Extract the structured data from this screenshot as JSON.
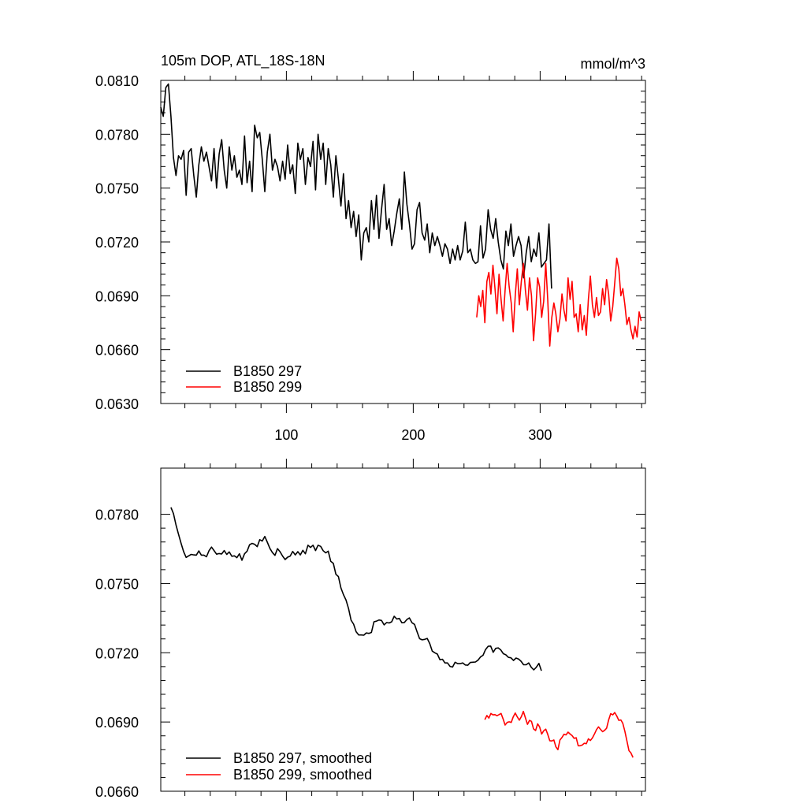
{
  "chart_data": [
    {
      "type": "line",
      "title": "105m DOP, ATL_18S-18N",
      "units": "mmol/m^3",
      "xlim": [
        1,
        383
      ],
      "ylim": [
        0.063,
        0.081
      ],
      "yticks": [
        "0.0630",
        "0.0660",
        "0.0690",
        "0.0720",
        "0.0750",
        "0.0780",
        "0.0810"
      ],
      "xticks": [
        "100",
        "200",
        "300"
      ],
      "legend_position": "bottom-left",
      "series": [
        {
          "name": "B1850 297",
          "color": "#000000",
          "x": [
            1,
            3,
            5,
            7,
            9,
            11,
            13,
            15,
            17,
            19,
            21,
            23,
            25,
            27,
            29,
            31,
            33,
            35,
            37,
            39,
            41,
            43,
            45,
            47,
            49,
            51,
            53,
            55,
            57,
            59,
            61,
            63,
            65,
            67,
            69,
            71,
            73,
            75,
            77,
            79,
            81,
            83,
            85,
            87,
            89,
            91,
            93,
            95,
            97,
            99,
            101,
            103,
            105,
            107,
            109,
            111,
            113,
            115,
            117,
            119,
            121,
            123,
            125,
            127,
            129,
            131,
            133,
            135,
            137,
            139,
            141,
            143,
            145,
            147,
            149,
            151,
            153,
            155,
            157,
            159,
            161,
            163,
            165,
            167,
            169,
            171,
            173,
            175,
            177,
            179,
            181,
            183,
            185,
            187,
            189,
            191,
            193,
            195,
            197,
            199,
            201,
            203,
            205,
            207,
            209,
            211,
            213,
            215,
            217,
            219,
            221,
            223,
            225,
            227,
            229,
            231,
            233,
            235,
            237,
            239,
            241,
            243,
            245,
            247,
            249,
            251,
            253,
            255,
            257,
            259,
            261,
            263,
            265,
            267,
            269,
            271,
            273,
            275,
            277,
            279,
            281,
            283,
            285,
            287,
            289,
            291,
            293,
            295,
            297,
            299,
            301,
            303,
            305,
            307,
            309
          ],
          "values": [
            0.0795,
            0.079,
            0.0806,
            0.0808,
            0.079,
            0.0767,
            0.0757,
            0.0768,
            0.0766,
            0.0771,
            0.0746,
            0.077,
            0.0772,
            0.0757,
            0.0745,
            0.0763,
            0.0773,
            0.0765,
            0.077,
            0.0762,
            0.0754,
            0.0772,
            0.075,
            0.0769,
            0.0777,
            0.076,
            0.075,
            0.0773,
            0.076,
            0.0768,
            0.0756,
            0.076,
            0.0752,
            0.0779,
            0.0753,
            0.0765,
            0.0748,
            0.0785,
            0.0778,
            0.0781,
            0.0766,
            0.0748,
            0.077,
            0.078,
            0.076,
            0.0766,
            0.0762,
            0.0754,
            0.0765,
            0.0755,
            0.0774,
            0.0758,
            0.0763,
            0.0747,
            0.0775,
            0.0766,
            0.0772,
            0.0752,
            0.0767,
            0.0762,
            0.0776,
            0.0749,
            0.078,
            0.0766,
            0.0775,
            0.0752,
            0.0772,
            0.0763,
            0.0745,
            0.0768,
            0.0755,
            0.074,
            0.0758,
            0.0733,
            0.0743,
            0.0728,
            0.0737,
            0.0723,
            0.0735,
            0.071,
            0.0725,
            0.0728,
            0.072,
            0.0743,
            0.0727,
            0.0746,
            0.0722,
            0.0738,
            0.0752,
            0.0727,
            0.0733,
            0.0718,
            0.0726,
            0.0736,
            0.0744,
            0.0727,
            0.0759,
            0.0741,
            0.073,
            0.0716,
            0.0719,
            0.0738,
            0.0742,
            0.0725,
            0.0721,
            0.073,
            0.0714,
            0.0725,
            0.0718,
            0.0723,
            0.0718,
            0.0712,
            0.0719,
            0.0716,
            0.0708,
            0.0716,
            0.071,
            0.0718,
            0.071,
            0.0715,
            0.0731,
            0.0714,
            0.0716,
            0.071,
            0.0708,
            0.0709,
            0.0729,
            0.0711,
            0.0716,
            0.0738,
            0.0727,
            0.0722,
            0.0733,
            0.072,
            0.071,
            0.0705,
            0.0726,
            0.0718,
            0.073,
            0.0712,
            0.0718,
            0.0723,
            0.0718,
            0.07,
            0.0714,
            0.0723,
            0.0709,
            0.0716,
            0.0712,
            0.0725,
            0.0706,
            0.0708,
            0.071,
            0.073,
            0.0694
          ]
        },
        {
          "name": "B1850 299",
          "color": "#ff0000",
          "x": [],
          "values": []
        }
      ]
    },
    {
      "type": "line",
      "xlim": [
        1,
        383
      ],
      "ylim": [
        0.066,
        0.08
      ],
      "yticks": [
        "0.0660",
        "0.0690",
        "0.0720",
        "0.0750",
        "0.0780"
      ],
      "legend_position": "bottom-left",
      "series": [
        {
          "name": "B1850 297, smoothed",
          "color": "#000000",
          "x": [],
          "values": []
        },
        {
          "name": "B1850 299, smoothed",
          "color": "#ff0000",
          "x": [],
          "values": []
        }
      ]
    }
  ]
}
